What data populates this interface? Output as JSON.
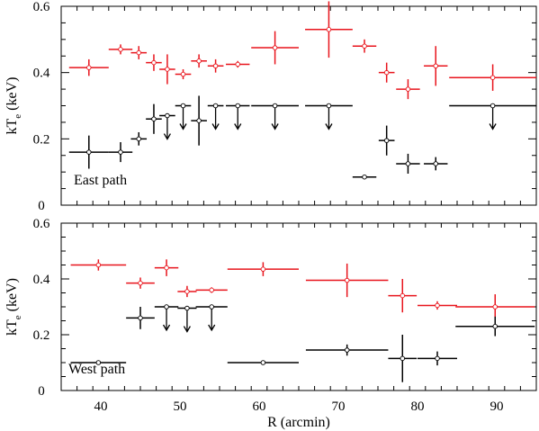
{
  "colors": {
    "red": "#e8141c",
    "black": "#000000",
    "axis": "#000000"
  },
  "chart_data": [
    {
      "type": "scatter",
      "panel": "top",
      "annotation": "East path",
      "xlabel": "",
      "ylabel_main": "kT",
      "ylabel_sub": "e",
      "ylabel_unit": " (keV)",
      "xlim": [
        35,
        95
      ],
      "ylim": [
        0,
        0.6
      ],
      "x_ticks": [
        40,
        50,
        60,
        70,
        80,
        90
      ],
      "y_ticks": [
        0,
        0.2,
        0.4,
        0.6
      ],
      "y_tick_labels": [
        "0",
        "0.2",
        "0.4",
        "0.6"
      ],
      "series": [
        {
          "color": "red",
          "points": [
            {
              "x": 38.5,
              "xerr": 2.5,
              "y": 0.415,
              "yerr": 0.025,
              "upper_limit": false
            },
            {
              "x": 42.5,
              "xerr": 1.5,
              "y": 0.47,
              "yerr": 0.015,
              "upper_limit": false
            },
            {
              "x": 44.8,
              "xerr": 1.0,
              "y": 0.46,
              "yerr": 0.02,
              "upper_limit": false
            },
            {
              "x": 46.7,
              "xerr": 1.0,
              "y": 0.43,
              "yerr": 0.025,
              "upper_limit": false
            },
            {
              "x": 48.4,
              "xerr": 1.0,
              "y": 0.41,
              "yerr": 0.045,
              "upper_limit": false
            },
            {
              "x": 50.4,
              "xerr": 1.0,
              "y": 0.395,
              "yerr": 0.015,
              "upper_limit": false
            },
            {
              "x": 52.4,
              "xerr": 1.0,
              "y": 0.435,
              "yerr": 0.02,
              "upper_limit": false
            },
            {
              "x": 54.5,
              "xerr": 1.0,
              "y": 0.42,
              "yerr": 0.02,
              "upper_limit": false
            },
            {
              "x": 57.3,
              "xerr": 1.5,
              "y": 0.425,
              "yerr": 0.01,
              "upper_limit": false
            },
            {
              "x": 62.0,
              "xerr": 3.0,
              "y": 0.475,
              "yerr": 0.05,
              "upper_limit": false
            },
            {
              "x": 68.8,
              "xerr": 3.0,
              "y": 0.53,
              "yerr": 0.085,
              "upper_limit": false
            },
            {
              "x": 73.3,
              "xerr": 1.5,
              "y": 0.48,
              "yerr": 0.02,
              "upper_limit": false
            },
            {
              "x": 76.1,
              "xerr": 1.0,
              "y": 0.4,
              "yerr": 0.03,
              "upper_limit": false
            },
            {
              "x": 78.8,
              "xerr": 1.5,
              "y": 0.35,
              "yerr": 0.03,
              "upper_limit": false
            },
            {
              "x": 82.3,
              "xerr": 1.5,
              "y": 0.42,
              "yerr": 0.06,
              "upper_limit": false
            },
            {
              "x": 89.5,
              "xerr": 5.5,
              "y": 0.385,
              "yerr": 0.04,
              "upper_limit": false
            }
          ]
        },
        {
          "color": "black",
          "points": [
            {
              "x": 38.5,
              "xerr": 2.5,
              "y": 0.16,
              "yerr": 0.05,
              "upper_limit": false
            },
            {
              "x": 42.5,
              "xerr": 1.5,
              "y": 0.16,
              "yerr": 0.03,
              "upper_limit": false
            },
            {
              "x": 44.8,
              "xerr": 1.0,
              "y": 0.2,
              "yerr": 0.02,
              "upper_limit": false
            },
            {
              "x": 46.7,
              "xerr": 1.0,
              "y": 0.26,
              "yerr": 0.045,
              "upper_limit": false
            },
            {
              "x": 48.4,
              "xerr": 1.0,
              "y": 0.27,
              "yerr": 0,
              "upper_limit": true
            },
            {
              "x": 50.4,
              "xerr": 1.0,
              "y": 0.3,
              "yerr": 0,
              "upper_limit": true
            },
            {
              "x": 52.4,
              "xerr": 1.0,
              "y": 0.255,
              "yerr": 0.075,
              "upper_limit": false
            },
            {
              "x": 54.5,
              "xerr": 1.0,
              "y": 0.3,
              "yerr": 0,
              "upper_limit": true
            },
            {
              "x": 57.3,
              "xerr": 1.5,
              "y": 0.3,
              "yerr": 0,
              "upper_limit": true
            },
            {
              "x": 62.0,
              "xerr": 3.0,
              "y": 0.3,
              "yerr": 0,
              "upper_limit": true
            },
            {
              "x": 68.8,
              "xerr": 3.0,
              "y": 0.3,
              "yerr": 0,
              "upper_limit": true
            },
            {
              "x": 73.3,
              "xerr": 1.5,
              "y": 0.085,
              "yerr": 0,
              "upper_limit": false
            },
            {
              "x": 76.1,
              "xerr": 1.0,
              "y": 0.195,
              "yerr": 0.045,
              "upper_limit": false
            },
            {
              "x": 78.8,
              "xerr": 1.5,
              "y": 0.125,
              "yerr": 0.03,
              "upper_limit": false
            },
            {
              "x": 82.3,
              "xerr": 1.5,
              "y": 0.125,
              "yerr": 0.02,
              "upper_limit": false
            },
            {
              "x": 89.5,
              "xerr": 5.5,
              "y": 0.3,
              "yerr": 0,
              "upper_limit": true
            }
          ]
        }
      ]
    },
    {
      "type": "scatter",
      "panel": "bottom",
      "annotation": "West path",
      "xlabel": "R (arcmin)",
      "ylabel_main": "kT",
      "ylabel_sub": "e",
      "ylabel_unit": " (keV)",
      "xlim": [
        35,
        95
      ],
      "ylim": [
        0,
        0.6
      ],
      "x_ticks": [
        40,
        50,
        60,
        70,
        80,
        90
      ],
      "x_tick_labels": [
        "40",
        "50",
        "60",
        "70",
        "80",
        "90"
      ],
      "y_ticks": [
        0,
        0.2,
        0.4,
        0.6
      ],
      "y_tick_labels": [
        "0",
        "0.2",
        "0.4",
        "0.6"
      ],
      "series": [
        {
          "color": "red",
          "points": [
            {
              "x": 39.7,
              "xerr": 3.5,
              "y": 0.45,
              "yerr": 0.02,
              "upper_limit": false
            },
            {
              "x": 45.0,
              "xerr": 1.8,
              "y": 0.385,
              "yerr": 0.02,
              "upper_limit": false
            },
            {
              "x": 48.3,
              "xerr": 1.5,
              "y": 0.44,
              "yerr": 0.03,
              "upper_limit": false
            },
            {
              "x": 50.9,
              "xerr": 1.2,
              "y": 0.355,
              "yerr": 0.02,
              "upper_limit": false
            },
            {
              "x": 54.0,
              "xerr": 2.0,
              "y": 0.36,
              "yerr": 0.01,
              "upper_limit": false
            },
            {
              "x": 60.5,
              "xerr": 4.5,
              "y": 0.435,
              "yerr": 0.025,
              "upper_limit": false
            },
            {
              "x": 71.1,
              "xerr": 5.2,
              "y": 0.395,
              "yerr": 0.06,
              "upper_limit": false
            },
            {
              "x": 78.1,
              "xerr": 1.8,
              "y": 0.34,
              "yerr": 0.06,
              "upper_limit": false
            },
            {
              "x": 82.5,
              "xerr": 2.5,
              "y": 0.305,
              "yerr": 0.015,
              "upper_limit": false
            },
            {
              "x": 89.8,
              "xerr": 5.0,
              "y": 0.3,
              "yerr": 0.045,
              "upper_limit": false
            }
          ]
        },
        {
          "color": "black",
          "points": [
            {
              "x": 39.7,
              "xerr": 3.5,
              "y": 0.1,
              "yerr": 0,
              "upper_limit": false
            },
            {
              "x": 45.0,
              "xerr": 1.8,
              "y": 0.26,
              "yerr": 0.04,
              "upper_limit": false
            },
            {
              "x": 48.3,
              "xerr": 1.5,
              "y": 0.3,
              "yerr": 0,
              "upper_limit": true
            },
            {
              "x": 50.9,
              "xerr": 1.2,
              "y": 0.295,
              "yerr": 0,
              "upper_limit": true
            },
            {
              "x": 54.0,
              "xerr": 2.0,
              "y": 0.3,
              "yerr": 0,
              "upper_limit": true
            },
            {
              "x": 60.5,
              "xerr": 4.5,
              "y": 0.1,
              "yerr": 0,
              "upper_limit": false
            },
            {
              "x": 71.1,
              "xerr": 5.2,
              "y": 0.145,
              "yerr": 0.02,
              "upper_limit": false
            },
            {
              "x": 78.1,
              "xerr": 1.8,
              "y": 0.115,
              "yerr": 0.085,
              "upper_limit": false
            },
            {
              "x": 82.5,
              "xerr": 2.5,
              "y": 0.115,
              "yerr": 0.025,
              "upper_limit": false
            },
            {
              "x": 89.8,
              "xerr": 5.0,
              "y": 0.23,
              "yerr": 0.035,
              "upper_limit": false
            }
          ]
        }
      ]
    }
  ]
}
